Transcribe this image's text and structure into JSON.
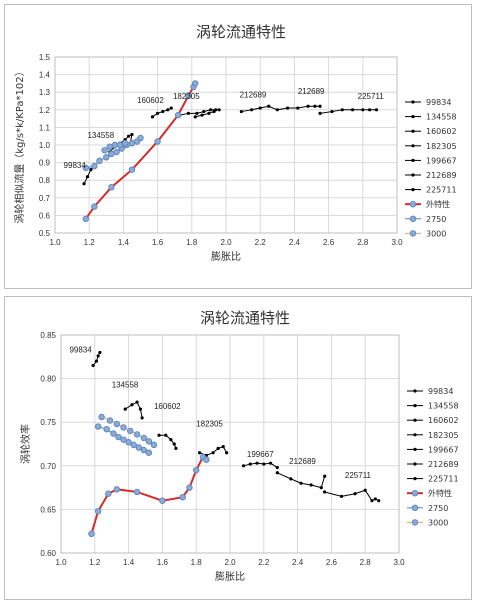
{
  "chart_data": [
    {
      "type": "scatter",
      "title": "涡轮流通特性",
      "xlabel": "膨胀比",
      "ylabel": "涡轮相似流量（kg/s*k/KPa*102）",
      "xlim": [
        1.0,
        3.0
      ],
      "ylim": [
        0.5,
        1.5
      ],
      "xticks": [
        "1.0",
        "1.2",
        "1.4",
        "1.6",
        "1.8",
        "2.0",
        "2.2",
        "2.4",
        "2.6",
        "2.8",
        "3.0"
      ],
      "yticks": [
        "0.5",
        "0.6",
        "0.7",
        "0.8",
        "0.9",
        "1.0",
        "1.1",
        "1.2",
        "1.3",
        "1.4",
        "1.5"
      ],
      "grid": true,
      "legend_position": "right",
      "annotations": [
        {
          "text": "99834",
          "x": 1.05,
          "y": 0.87
        },
        {
          "text": "134558",
          "x": 1.19,
          "y": 1.04
        },
        {
          "text": "160602",
          "x": 1.48,
          "y": 1.24
        },
        {
          "text": "182305",
          "x": 1.69,
          "y": 1.26
        },
        {
          "text": "212689",
          "x": 2.08,
          "y": 1.27
        },
        {
          "text": "212689",
          "x": 2.42,
          "y": 1.29
        },
        {
          "text": "225711",
          "x": 2.77,
          "y": 1.26
        }
      ],
      "series": [
        {
          "name": "99834",
          "color": "#000000",
          "x": [
            1.17,
            1.19,
            1.21,
            1.23
          ],
          "y": [
            0.78,
            0.82,
            0.86,
            0.88
          ]
        },
        {
          "name": "134558",
          "color": "#000000",
          "x": [
            1.32,
            1.35,
            1.38,
            1.41,
            1.43,
            1.45,
            1.44
          ],
          "y": [
            0.96,
            0.99,
            1.01,
            1.03,
            1.05,
            1.06,
            1.01
          ]
        },
        {
          "name": "160602",
          "color": "#000000",
          "x": [
            1.57,
            1.6,
            1.63,
            1.66,
            1.68
          ],
          "y": [
            1.16,
            1.18,
            1.19,
            1.2,
            1.21
          ]
        },
        {
          "name": "182305",
          "color": "#000000",
          "x": [
            1.73,
            1.78,
            1.83,
            1.87,
            1.91,
            1.94,
            1.96
          ],
          "y": [
            1.17,
            1.18,
            1.18,
            1.19,
            1.2,
            1.2,
            1.2
          ]
        },
        {
          "name": "199667",
          "color": "#000000",
          "x": [
            1.82,
            1.86,
            1.9,
            1.93
          ],
          "y": [
            1.16,
            1.17,
            1.18,
            1.19
          ]
        },
        {
          "name": "212689",
          "color": "#000000",
          "x": [
            2.09,
            2.15,
            2.2,
            2.25,
            2.3,
            2.36,
            2.42,
            2.48,
            2.52,
            2.55
          ],
          "y": [
            1.19,
            1.2,
            1.21,
            1.22,
            1.2,
            1.21,
            1.21,
            1.22,
            1.22,
            1.22
          ]
        },
        {
          "name": "225711",
          "color": "#000000",
          "x": [
            2.55,
            2.62,
            2.68,
            2.74,
            2.8,
            2.84,
            2.88
          ],
          "y": [
            1.18,
            1.19,
            1.2,
            1.2,
            1.2,
            1.2,
            1.2
          ]
        },
        {
          "name": "外特性",
          "color": "#d62b2b",
          "x": [
            1.18,
            1.23,
            1.33,
            1.45,
            1.6,
            1.72,
            1.78,
            1.81,
            1.82
          ],
          "y": [
            0.58,
            0.65,
            0.76,
            0.86,
            1.02,
            1.17,
            1.28,
            1.33,
            1.35
          ]
        },
        {
          "name": "2750",
          "color": "#4f81bd",
          "x": [
            1.18,
            1.23,
            1.26,
            1.3,
            1.33,
            1.36,
            1.39,
            1.42,
            1.45,
            1.48,
            1.5
          ],
          "y": [
            0.87,
            0.88,
            0.91,
            0.93,
            0.95,
            0.96,
            0.98,
            1.0,
            1.01,
            1.02,
            1.04
          ]
        },
        {
          "name": "3000",
          "color": "#f0a35a",
          "x": [
            1.29,
            1.32,
            1.35,
            1.38,
            1.41
          ],
          "y": [
            0.97,
            0.99,
            1.0,
            1.0,
            1.01
          ]
        }
      ]
    },
    {
      "type": "scatter",
      "title": "涡轮流通特性",
      "xlabel": "膨胀比",
      "ylabel": "涡轮效率",
      "xlim": [
        1.0,
        3.0
      ],
      "ylim": [
        0.6,
        0.85
      ],
      "xticks": [
        "1.0",
        "1.2",
        "1.4",
        "1.6",
        "1.8",
        "2.0",
        "2.2",
        "2.4",
        "2.6",
        "2.8",
        "3.0"
      ],
      "yticks": [
        "0.60",
        "0.65",
        "0.70",
        "0.75",
        "0.80",
        "0.85"
      ],
      "grid": true,
      "legend_position": "right",
      "annotations": [
        {
          "text": "99834",
          "x": 1.05,
          "y": 0.83
        },
        {
          "text": "134558",
          "x": 1.3,
          "y": 0.79
        },
        {
          "text": "160602",
          "x": 1.55,
          "y": 0.765
        },
        {
          "text": "182305",
          "x": 1.8,
          "y": 0.745
        },
        {
          "text": "199667",
          "x": 2.1,
          "y": 0.71
        },
        {
          "text": "212689",
          "x": 2.35,
          "y": 0.702
        },
        {
          "text": "225711",
          "x": 2.68,
          "y": 0.686
        }
      ],
      "series": [
        {
          "name": "99834",
          "color": "#000000",
          "x": [
            1.19,
            1.21,
            1.22,
            1.23
          ],
          "y": [
            0.815,
            0.82,
            0.826,
            0.83
          ]
        },
        {
          "name": "134558",
          "color": "#000000",
          "x": [
            1.38,
            1.42,
            1.45,
            1.47,
            1.48
          ],
          "y": [
            0.765,
            0.77,
            0.773,
            0.765,
            0.755
          ]
        },
        {
          "name": "160602",
          "color": "#000000",
          "x": [
            1.58,
            1.62,
            1.65,
            1.67,
            1.68
          ],
          "y": [
            0.735,
            0.735,
            0.73,
            0.725,
            0.72
          ]
        },
        {
          "name": "182305",
          "color": "#000000",
          "x": [
            1.82,
            1.86,
            1.9,
            1.93,
            1.96,
            1.98
          ],
          "y": [
            0.715,
            0.712,
            0.715,
            0.72,
            0.722,
            0.715
          ]
        },
        {
          "name": "199667",
          "color": "#000000",
          "x": [
            2.08,
            2.12,
            2.16,
            2.2,
            2.24,
            2.28
          ],
          "y": [
            0.7,
            0.702,
            0.703,
            0.702,
            0.703,
            0.698
          ]
        },
        {
          "name": "212689",
          "color": "#000000",
          "x": [
            2.28,
            2.36,
            2.42,
            2.48,
            2.54,
            2.56
          ],
          "y": [
            0.692,
            0.685,
            0.68,
            0.678,
            0.675,
            0.688
          ]
        },
        {
          "name": "225711",
          "color": "#000000",
          "x": [
            2.56,
            2.66,
            2.74,
            2.8,
            2.84,
            2.86,
            2.88
          ],
          "y": [
            0.67,
            0.665,
            0.668,
            0.672,
            0.66,
            0.662,
            0.66
          ]
        },
        {
          "name": "外特性",
          "color": "#d62b2b",
          "x": [
            1.18,
            1.22,
            1.28,
            1.33,
            1.45,
            1.6,
            1.72,
            1.76,
            1.8,
            1.84,
            1.86
          ],
          "y": [
            0.622,
            0.648,
            0.668,
            0.673,
            0.67,
            0.66,
            0.664,
            0.675,
            0.695,
            0.71,
            0.707
          ]
        },
        {
          "name": "2750",
          "color": "#4f81bd",
          "x": [
            1.22,
            1.27,
            1.31,
            1.34,
            1.37,
            1.4,
            1.43,
            1.46,
            1.49,
            1.52
          ],
          "y": [
            0.745,
            0.742,
            0.737,
            0.733,
            0.73,
            0.727,
            0.724,
            0.721,
            0.718,
            0.715
          ]
        },
        {
          "name": "3000",
          "color": "#f0a35a",
          "x": [
            1.24,
            1.29,
            1.33,
            1.37,
            1.41,
            1.45,
            1.49,
            1.52,
            1.55
          ],
          "y": [
            0.756,
            0.752,
            0.748,
            0.744,
            0.74,
            0.736,
            0.732,
            0.728,
            0.724
          ]
        }
      ]
    }
  ]
}
